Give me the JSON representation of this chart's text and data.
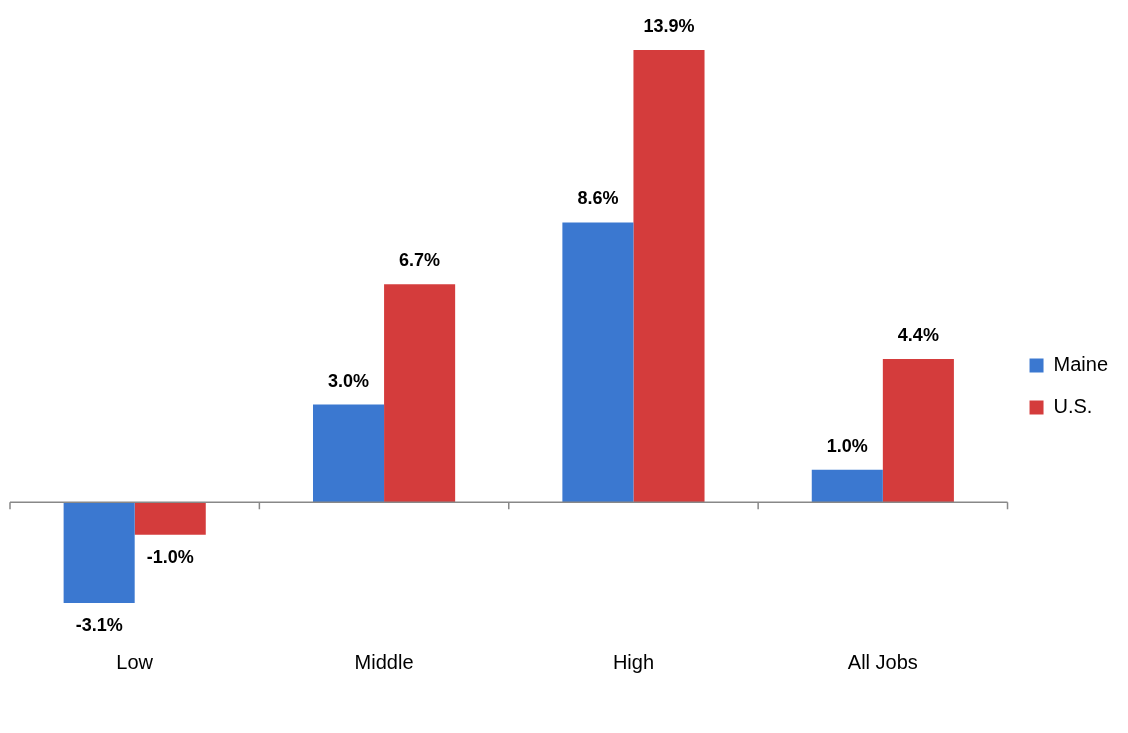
{
  "chart_data": {
    "type": "bar",
    "categories": [
      "Low",
      "Middle",
      "High",
      "All Jobs"
    ],
    "series": [
      {
        "name": "Maine",
        "color": "#3b78d0",
        "values": [
          -3.1,
          3.0,
          8.6,
          1.0
        ],
        "value_labels": [
          "-3.1%",
          "3.0%",
          "8.6%",
          "1.0%"
        ]
      },
      {
        "name": "U.S.",
        "color": "#d43c3c",
        "values": [
          -1.0,
          6.7,
          13.9,
          4.4
        ],
        "value_labels": [
          "-1.0%",
          "6.7%",
          "13.9%",
          "4.4%"
        ]
      }
    ],
    "legend": "right",
    "grid": false
  }
}
